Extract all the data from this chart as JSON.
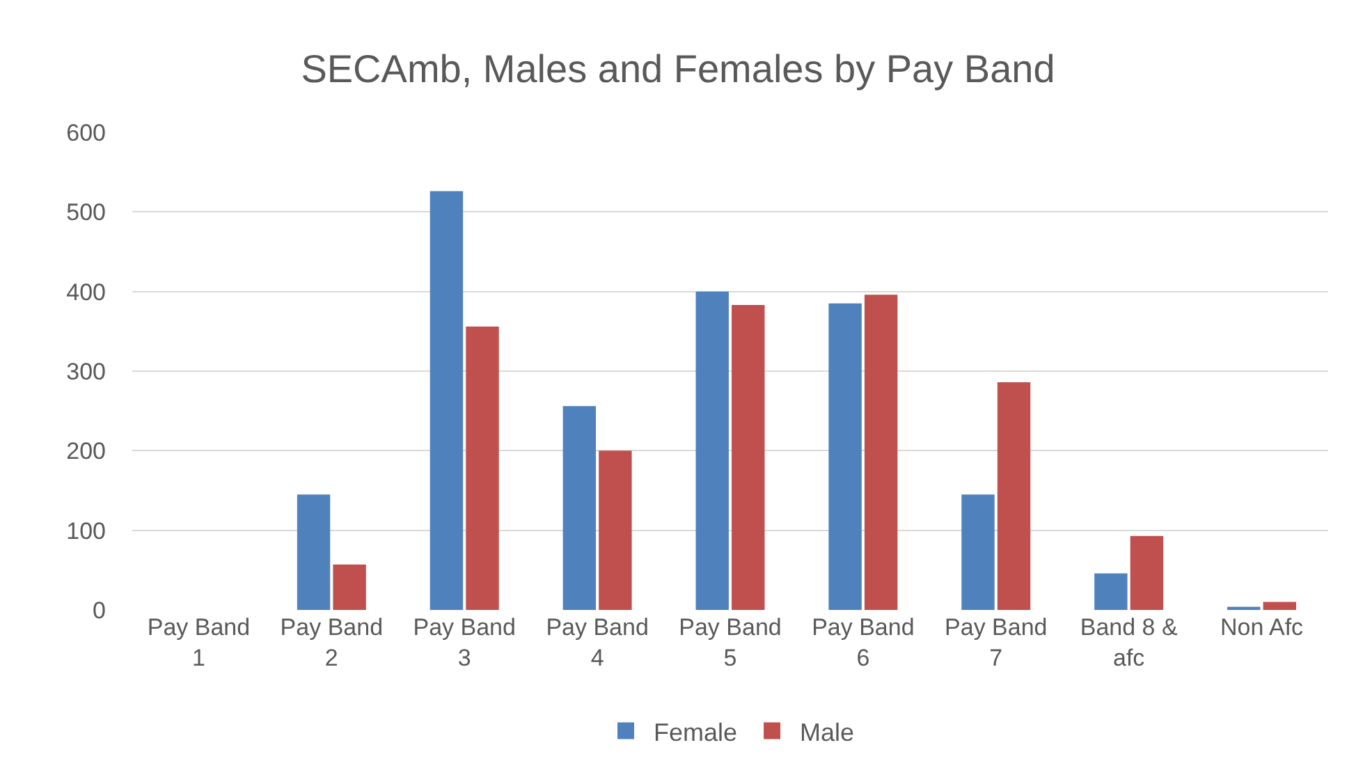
{
  "chart_data": {
    "type": "bar",
    "title": "SECAmb, Males and Females by Pay Band",
    "categories": [
      "Pay Band 1",
      "Pay Band 2",
      "Pay Band 3",
      "Pay Band 4",
      "Pay Band 5",
      "Pay Band 6",
      "Pay Band 7",
      "Band 8 & afc",
      "Non Afc"
    ],
    "series": [
      {
        "name": "Female",
        "color": "#4f81bd",
        "values": [
          0,
          145,
          526,
          256,
          400,
          385,
          145,
          46,
          4
        ]
      },
      {
        "name": "Male",
        "color": "#c0504d",
        "values": [
          0,
          57,
          356,
          200,
          383,
          396,
          286,
          93,
          10
        ]
      }
    ],
    "ylim": [
      0,
      600
    ],
    "yticks": [
      0,
      100,
      200,
      300,
      400,
      500,
      600
    ],
    "grid": "y",
    "legend": "bottom"
  }
}
